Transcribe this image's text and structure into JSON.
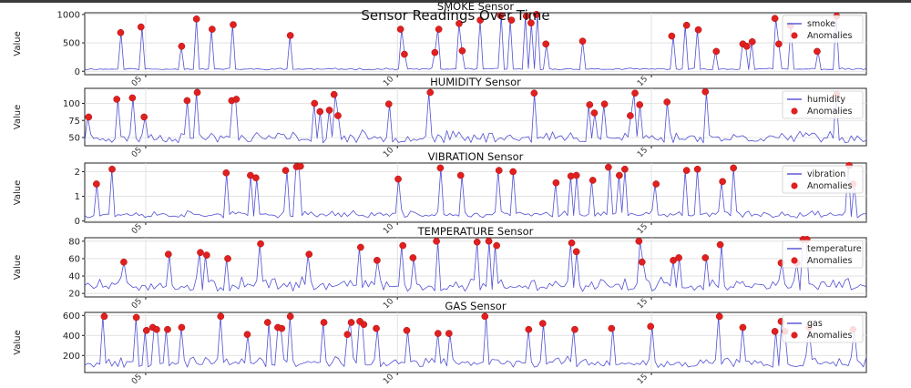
{
  "figure": {
    "suptitle": "Sensor Readings Over Time",
    "colors": {
      "line": "#3333cc",
      "anomaly": "#e02020",
      "axes": "#222222",
      "grid": "#dddddd"
    }
  },
  "chart_data": [
    {
      "type": "line",
      "title": "SMOKE Sensor",
      "ylabel": "Value",
      "legend": [
        "smoke",
        "Anomalies"
      ],
      "legend_position": "top-right",
      "xticks": [
        "05",
        "10",
        "15"
      ],
      "yticks": [
        0,
        500,
        1000
      ],
      "ylim": [
        -60,
        1030
      ],
      "series_name": "smoke",
      "baseline": [
        25,
        60
      ],
      "seed": 11,
      "anomalies": [
        [
          0.046,
          680
        ],
        [
          0.072,
          780
        ],
        [
          0.124,
          440
        ],
        [
          0.143,
          920
        ],
        [
          0.163,
          740
        ],
        [
          0.19,
          820
        ],
        [
          0.263,
          630
        ],
        [
          0.404,
          740
        ],
        [
          0.409,
          300
        ],
        [
          0.448,
          330
        ],
        [
          0.453,
          740
        ],
        [
          0.479,
          840
        ],
        [
          0.483,
          360
        ],
        [
          0.506,
          900
        ],
        [
          0.532,
          980
        ],
        [
          0.546,
          900
        ],
        [
          0.565,
          970
        ],
        [
          0.571,
          850
        ],
        [
          0.578,
          1000
        ],
        [
          0.59,
          480
        ],
        [
          0.637,
          530
        ],
        [
          0.751,
          620
        ],
        [
          0.77,
          810
        ],
        [
          0.785,
          730
        ],
        [
          0.808,
          350
        ],
        [
          0.842,
          480
        ],
        [
          0.847,
          440
        ],
        [
          0.854,
          520
        ],
        [
          0.883,
          930
        ],
        [
          0.888,
          480
        ],
        [
          0.903,
          800
        ],
        [
          0.937,
          350
        ],
        [
          0.962,
          970
        ]
      ]
    },
    {
      "type": "line",
      "title": "HUMIDITY Sensor",
      "ylabel": "Value",
      "legend": [
        "humidity",
        "Anomalies"
      ],
      "legend_position": "top-right",
      "xticks": [
        "05",
        "10",
        "15"
      ],
      "yticks": [
        50,
        75,
        100
      ],
      "ylim": [
        38,
        122
      ],
      "series_name": "humidity",
      "baseline": [
        42,
        62
      ],
      "seed": 23,
      "anomalies": [
        [
          0.005,
          80
        ],
        [
          0.041,
          106
        ],
        [
          0.061,
          108
        ],
        [
          0.076,
          80
        ],
        [
          0.131,
          104
        ],
        [
          0.144,
          116
        ],
        [
          0.188,
          104
        ],
        [
          0.194,
          106
        ],
        [
          0.294,
          100
        ],
        [
          0.301,
          88
        ],
        [
          0.313,
          90
        ],
        [
          0.319,
          113
        ],
        [
          0.324,
          82
        ],
        [
          0.389,
          99
        ],
        [
          0.442,
          116
        ],
        [
          0.575,
          115
        ],
        [
          0.646,
          98
        ],
        [
          0.652,
          86
        ],
        [
          0.665,
          99
        ],
        [
          0.698,
          82
        ],
        [
          0.704,
          115
        ],
        [
          0.71,
          98
        ],
        [
          0.745,
          102
        ],
        [
          0.794,
          117
        ],
        [
          0.962,
          113
        ]
      ]
    },
    {
      "type": "line",
      "title": "VIBRATION Sensor",
      "ylabel": "Value",
      "legend": [
        "vibration",
        "Anomalies"
      ],
      "legend_position": "top-right",
      "xticks": [
        "05",
        "10",
        "15"
      ],
      "yticks": [
        0,
        1,
        2
      ],
      "ylim": [
        -0.05,
        2.35
      ],
      "series_name": "vibration",
      "baseline": [
        0.12,
        0.48
      ],
      "seed": 37,
      "anomalies": [
        [
          0.015,
          1.5
        ],
        [
          0.035,
          2.1
        ],
        [
          0.181,
          1.95
        ],
        [
          0.212,
          1.85
        ],
        [
          0.219,
          1.75
        ],
        [
          0.257,
          2.05
        ],
        [
          0.271,
          2.2
        ],
        [
          0.276,
          2.22
        ],
        [
          0.401,
          1.7
        ],
        [
          0.455,
          2.15
        ],
        [
          0.481,
          1.85
        ],
        [
          0.53,
          2.05
        ],
        [
          0.548,
          2.0
        ],
        [
          0.603,
          1.55
        ],
        [
          0.622,
          1.82
        ],
        [
          0.629,
          1.85
        ],
        [
          0.65,
          1.65
        ],
        [
          0.67,
          2.18
        ],
        [
          0.684,
          1.85
        ],
        [
          0.691,
          2.1
        ],
        [
          0.731,
          1.5
        ],
        [
          0.77,
          2.05
        ],
        [
          0.784,
          2.1
        ],
        [
          0.816,
          1.6
        ],
        [
          0.83,
          2.15
        ],
        [
          0.978,
          2.25
        ],
        [
          0.983,
          1.5
        ]
      ]
    },
    {
      "type": "line",
      "title": "TEMPERATURE Sensor",
      "ylabel": "Value",
      "legend": [
        "temperature",
        "Anomalies"
      ],
      "legend_position": "top-right",
      "xticks": [
        "05",
        "10",
        "15"
      ],
      "yticks": [
        20,
        40,
        60,
        80
      ],
      "ylim": [
        16,
        84
      ],
      "series_name": "temperature",
      "baseline": [
        22,
        40
      ],
      "seed": 51,
      "anomalies": [
        [
          0.05,
          56
        ],
        [
          0.107,
          65
        ],
        [
          0.148,
          67
        ],
        [
          0.156,
          64
        ],
        [
          0.183,
          60
        ],
        [
          0.225,
          77
        ],
        [
          0.287,
          65
        ],
        [
          0.353,
          73
        ],
        [
          0.374,
          58
        ],
        [
          0.407,
          75
        ],
        [
          0.42,
          61
        ],
        [
          0.45,
          80
        ],
        [
          0.502,
          79
        ],
        [
          0.517,
          80
        ],
        [
          0.527,
          75
        ],
        [
          0.623,
          78
        ],
        [
          0.629,
          68
        ],
        [
          0.709,
          80
        ],
        [
          0.713,
          56
        ],
        [
          0.753,
          58
        ],
        [
          0.76,
          61
        ],
        [
          0.794,
          61
        ],
        [
          0.813,
          76
        ],
        [
          0.891,
          55
        ],
        [
          0.911,
          55
        ],
        [
          0.919,
          82
        ],
        [
          0.924,
          82
        ]
      ]
    },
    {
      "type": "line",
      "title": "GAS Sensor",
      "ylabel": "Value",
      "legend": [
        "gas",
        "Anomalies"
      ],
      "legend_position": "top-right",
      "xticks": [
        "05",
        "10",
        "15"
      ],
      "yticks": [
        200,
        400,
        600
      ],
      "ylim": [
        30,
        630
      ],
      "series_name": "gas",
      "baseline": [
        80,
        200
      ],
      "seed": 67,
      "anomalies": [
        [
          0.025,
          590
        ],
        [
          0.066,
          580
        ],
        [
          0.079,
          450
        ],
        [
          0.087,
          480
        ],
        [
          0.092,
          460
        ],
        [
          0.106,
          460
        ],
        [
          0.124,
          480
        ],
        [
          0.174,
          590
        ],
        [
          0.208,
          410
        ],
        [
          0.234,
          530
        ],
        [
          0.247,
          480
        ],
        [
          0.252,
          470
        ],
        [
          0.263,
          590
        ],
        [
          0.306,
          530
        ],
        [
          0.336,
          410
        ],
        [
          0.341,
          530
        ],
        [
          0.352,
          540
        ],
        [
          0.357,
          510
        ],
        [
          0.373,
          470
        ],
        [
          0.412,
          450
        ],
        [
          0.452,
          420
        ],
        [
          0.466,
          420
        ],
        [
          0.512,
          590
        ],
        [
          0.568,
          460
        ],
        [
          0.586,
          520
        ],
        [
          0.627,
          460
        ],
        [
          0.674,
          470
        ],
        [
          0.724,
          490
        ],
        [
          0.812,
          590
        ],
        [
          0.842,
          480
        ],
        [
          0.883,
          440
        ],
        [
          0.891,
          540
        ],
        [
          0.896,
          440
        ],
        [
          0.927,
          480
        ],
        [
          0.983,
          460
        ]
      ]
    }
  ]
}
